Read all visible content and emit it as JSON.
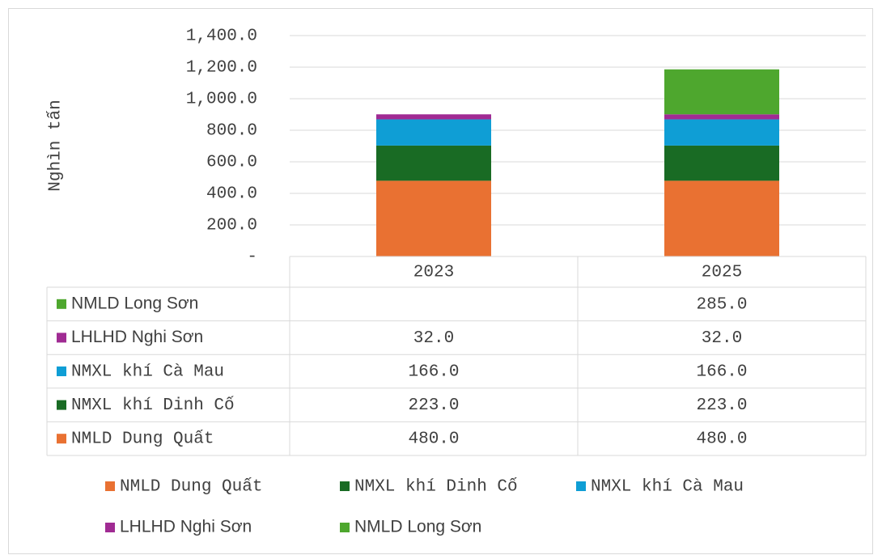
{
  "chart_data": {
    "type": "stacked_bar",
    "y_label": "Nghìn tấn",
    "categories": [
      "2023",
      "2025"
    ],
    "series": [
      {
        "name": "NMLD Dung Quất",
        "color": "#e97132",
        "values": [
          480,
          480
        ],
        "value_labels": [
          "480.0",
          "480.0"
        ]
      },
      {
        "name": "NMXL khí Dinh Cố",
        "color": "#196b24",
        "values": [
          223,
          223
        ],
        "value_labels": [
          "223.0",
          "223.0"
        ]
      },
      {
        "name": "NMXL khí Cà Mau",
        "color": "#0f9ed5",
        "values": [
          166,
          166
        ],
        "value_labels": [
          "166.0",
          "166.0"
        ]
      },
      {
        "name": "LHLHD Nghi Sơn",
        "color": "#a02b93",
        "values": [
          32,
          32
        ],
        "value_labels": [
          "32.0",
          "32.0"
        ]
      },
      {
        "name": "NMLD Long Sơn",
        "color": "#4ea72e",
        "values": [
          null,
          285
        ],
        "value_labels": [
          null,
          "285.0"
        ]
      }
    ],
    "ylim": [
      0,
      1400
    ],
    "yticks": [
      {
        "value": 0,
        "label": "-"
      },
      {
        "value": 200,
        "label": "200.0"
      },
      {
        "value": 400,
        "label": "400.0"
      },
      {
        "value": 600,
        "label": "600.0"
      },
      {
        "value": 800,
        "label": "800.0"
      },
      {
        "value": 1000,
        "label": "1,000.0"
      },
      {
        "value": 1200,
        "label": "1,200.0"
      },
      {
        "value": 1400,
        "label": "1,400.0"
      }
    ],
    "grid": true
  }
}
